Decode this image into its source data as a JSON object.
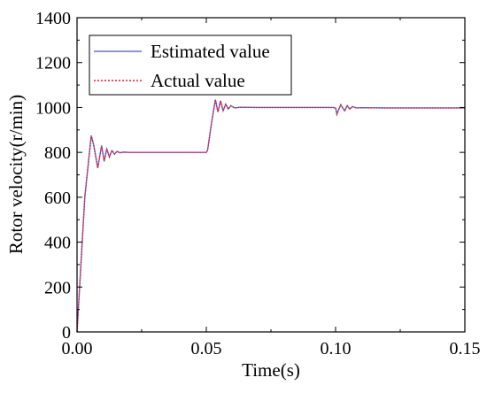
{
  "chart_data": {
    "type": "line",
    "title": "",
    "xlabel": "Time(s)",
    "ylabel": "Rotor velocity(r/min)",
    "xlim": [
      0,
      0.15
    ],
    "ylim": [
      0,
      1400
    ],
    "xticks": [
      0,
      0.05,
      0.1,
      0.15
    ],
    "xtick_labels": [
      "0.00",
      "0.05",
      "0.10",
      "0.15"
    ],
    "yticks": [
      0,
      200,
      400,
      600,
      800,
      1000,
      1200,
      1400
    ],
    "ytick_labels": [
      "0",
      "200",
      "400",
      "600",
      "800",
      "1000",
      "1200",
      "1400"
    ],
    "grid": false,
    "legend_position": "top-left",
    "series": [
      {
        "name": "Estimated value",
        "color": "#6b6bdc",
        "style": "solid",
        "x": [
          0,
          0.003,
          0.0055,
          0.0065,
          0.008,
          0.0095,
          0.0105,
          0.0115,
          0.0125,
          0.0135,
          0.0145,
          0.0155,
          0.0165,
          0.018,
          0.02,
          0.03,
          0.04,
          0.05,
          0.0505,
          0.052,
          0.0535,
          0.0545,
          0.0555,
          0.0565,
          0.0575,
          0.0585,
          0.0595,
          0.061,
          0.063,
          0.07,
          0.08,
          0.09,
          0.099,
          0.1,
          0.1005,
          0.101,
          0.102,
          0.1035,
          0.1045,
          0.1055,
          0.1065,
          0.108,
          0.11,
          0.12,
          0.13,
          0.14,
          0.15
        ],
        "y": [
          0,
          600,
          875,
          830,
          730,
          830,
          760,
          815,
          780,
          808,
          792,
          805,
          798,
          801,
          800,
          800,
          800,
          800,
          810,
          930,
          1035,
          980,
          1030,
          985,
          1015,
          993,
          1008,
          998,
          1001,
          1000,
          1000,
          1000,
          1000,
          998,
          970,
          985,
          1012,
          985,
          1008,
          993,
          1004,
          998,
          999,
          998,
          998,
          998,
          998
        ]
      },
      {
        "name": "Actual value",
        "color": "#e0202a",
        "style": "dotted",
        "x": [
          0,
          0.003,
          0.0055,
          0.0065,
          0.008,
          0.0095,
          0.0105,
          0.0115,
          0.0125,
          0.0135,
          0.0145,
          0.0155,
          0.0165,
          0.018,
          0.02,
          0.03,
          0.04,
          0.05,
          0.0505,
          0.052,
          0.0535,
          0.0545,
          0.0555,
          0.0565,
          0.0575,
          0.0585,
          0.0595,
          0.061,
          0.063,
          0.07,
          0.08,
          0.09,
          0.099,
          0.1,
          0.1005,
          0.101,
          0.102,
          0.1035,
          0.1045,
          0.1055,
          0.1065,
          0.108,
          0.11,
          0.12,
          0.13,
          0.14,
          0.15
        ],
        "y": [
          0,
          600,
          875,
          830,
          730,
          830,
          760,
          815,
          780,
          808,
          792,
          805,
          798,
          801,
          800,
          800,
          800,
          800,
          810,
          930,
          1035,
          980,
          1030,
          985,
          1015,
          993,
          1008,
          998,
          1001,
          1000,
          1000,
          1000,
          1000,
          998,
          970,
          985,
          1012,
          985,
          1008,
          993,
          1004,
          998,
          999,
          998,
          998,
          998,
          998
        ]
      }
    ]
  }
}
